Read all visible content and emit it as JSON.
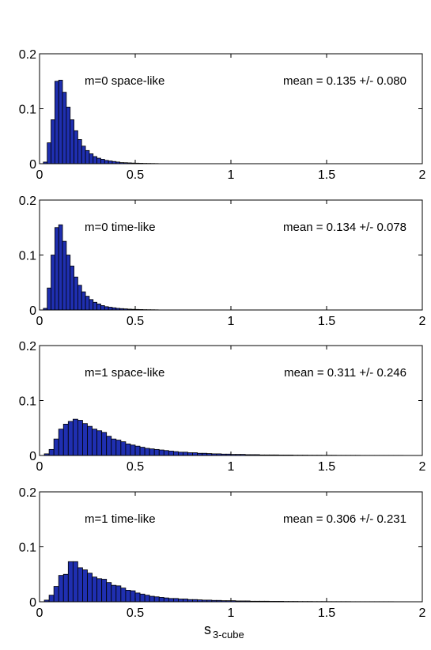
{
  "colors": {
    "bar_fill": "#1f2fb0",
    "bar_edge": "#000000",
    "axes": "#000000",
    "background": "#ffffff"
  },
  "xlabel": {
    "main": "s",
    "sub": "3-cube"
  },
  "chart_data": [
    {
      "type": "bar",
      "annotation_left": "m=0 space-like",
      "annotation_right": "mean = 0.135 +/- 0.080",
      "xlim": [
        0,
        2
      ],
      "ylim": [
        0,
        0.2
      ],
      "xticks": [
        "0",
        "0.5",
        "1",
        "1.5",
        "2"
      ],
      "yticks": [
        "0",
        "0.1",
        "0.2"
      ],
      "bin_width": 0.02,
      "bin_start": 0.02,
      "values": [
        0.003,
        0.038,
        0.08,
        0.15,
        0.152,
        0.13,
        0.103,
        0.08,
        0.06,
        0.044,
        0.032,
        0.024,
        0.018,
        0.013,
        0.01,
        0.008,
        0.006,
        0.005,
        0.004,
        0.003,
        0.002,
        0.0018,
        0.0015,
        0.0012,
        0.001,
        0.0008,
        0.0006,
        0.0005,
        0.0004,
        0.0003
      ]
    },
    {
      "type": "bar",
      "annotation_left": "m=0 time-like",
      "annotation_right": "mean = 0.134 +/- 0.078",
      "xlim": [
        0,
        2
      ],
      "ylim": [
        0,
        0.2
      ],
      "xticks": [
        "0",
        "0.5",
        "1",
        "1.5",
        "2"
      ],
      "yticks": [
        "0",
        "0.1",
        "0.2"
      ],
      "bin_width": 0.02,
      "bin_start": 0.02,
      "values": [
        0.003,
        0.04,
        0.1,
        0.15,
        0.155,
        0.125,
        0.1,
        0.08,
        0.06,
        0.045,
        0.033,
        0.025,
        0.019,
        0.014,
        0.011,
        0.008,
        0.006,
        0.005,
        0.004,
        0.003,
        0.0025,
        0.002,
        0.0015,
        0.0012,
        0.001,
        0.0008,
        0.0006,
        0.0005,
        0.0004,
        0.0003
      ]
    },
    {
      "type": "bar",
      "annotation_left": "m=1 space-like",
      "annotation_right": "mean = 0.311 +/- 0.246",
      "xlim": [
        0,
        2
      ],
      "ylim": [
        0,
        0.2
      ],
      "xticks": [
        "0",
        "0.5",
        "1",
        "1.5",
        "2"
      ],
      "yticks": [
        "0",
        "0.1",
        "0.2"
      ],
      "bin_width": 0.025,
      "bin_start": 0.025,
      "values": [
        0.003,
        0.011,
        0.03,
        0.048,
        0.057,
        0.062,
        0.066,
        0.064,
        0.058,
        0.053,
        0.048,
        0.045,
        0.042,
        0.035,
        0.03,
        0.028,
        0.025,
        0.021,
        0.019,
        0.017,
        0.015,
        0.013,
        0.012,
        0.011,
        0.01,
        0.009,
        0.008,
        0.007,
        0.006,
        0.006,
        0.005,
        0.005,
        0.004,
        0.004,
        0.0035,
        0.003,
        0.003,
        0.0025,
        0.0025,
        0.002,
        0.002,
        0.002,
        0.0015,
        0.0015,
        0.0015,
        0.001,
        0.001,
        0.001,
        0.001,
        0.0008,
        0.0008,
        0.0008,
        0.0006,
        0.0006,
        0.0006,
        0.0005,
        0.0005,
        0.0005,
        0.0004,
        0.0004,
        0.0004,
        0.0003,
        0.0003,
        0.0003,
        0.0003,
        0.0003,
        0.0002,
        0.0002,
        0.0002,
        0.0002,
        0.0002,
        0.0002,
        0.0002,
        0.0002,
        0.0002,
        0.0001,
        0.0001,
        0.0001,
        0.0001
      ]
    },
    {
      "type": "bar",
      "annotation_left": "m=1 time-like",
      "annotation_right": "mean = 0.306 +/- 0.231",
      "xlim": [
        0,
        2
      ],
      "ylim": [
        0,
        0.2
      ],
      "xticks": [
        "0",
        "0.5",
        "1",
        "1.5",
        "2"
      ],
      "yticks": [
        "0",
        "0.1",
        "0.2"
      ],
      "bin_width": 0.025,
      "bin_start": 0.025,
      "values": [
        0.003,
        0.012,
        0.028,
        0.048,
        0.05,
        0.073,
        0.073,
        0.062,
        0.058,
        0.052,
        0.045,
        0.042,
        0.041,
        0.035,
        0.03,
        0.029,
        0.025,
        0.021,
        0.02,
        0.016,
        0.014,
        0.012,
        0.01,
        0.009,
        0.008,
        0.007,
        0.006,
        0.006,
        0.005,
        0.005,
        0.004,
        0.004,
        0.0035,
        0.003,
        0.003,
        0.0025,
        0.0025,
        0.002,
        0.002,
        0.002,
        0.0015,
        0.0015,
        0.0015,
        0.001,
        0.001,
        0.001,
        0.001,
        0.0008,
        0.0008,
        0.0008,
        0.0006,
        0.0006,
        0.0006,
        0.0005,
        0.0005,
        0.0005,
        0.0004,
        0.0004,
        0.0004,
        0.0003,
        0.0003,
        0.0003,
        0.0003,
        0.0003,
        0.0002,
        0.0002,
        0.0002,
        0.0002,
        0.0002,
        0.0002,
        0.0002,
        0.0002,
        0.0002,
        0.0001,
        0.0001,
        0.0001,
        0.0001,
        0.0001,
        0.0001
      ]
    }
  ]
}
